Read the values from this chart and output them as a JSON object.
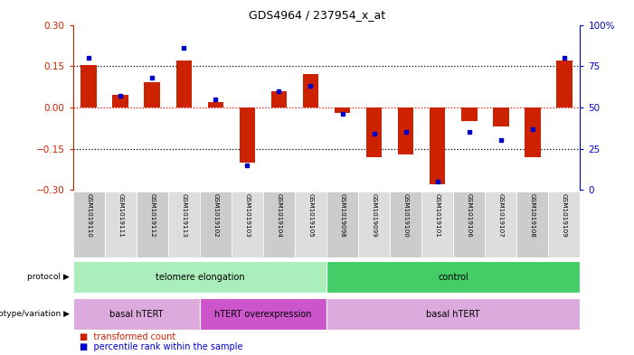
{
  "title": "GDS4964 / 237954_x_at",
  "samples": [
    "GSM1019110",
    "GSM1019111",
    "GSM1019112",
    "GSM1019113",
    "GSM1019102",
    "GSM1019103",
    "GSM1019104",
    "GSM1019105",
    "GSM1019098",
    "GSM1019099",
    "GSM1019100",
    "GSM1019101",
    "GSM1019106",
    "GSM1019107",
    "GSM1019108",
    "GSM1019109"
  ],
  "transformed_count": [
    0.155,
    0.045,
    0.09,
    0.17,
    0.02,
    -0.2,
    0.06,
    0.12,
    -0.02,
    -0.18,
    -0.17,
    -0.28,
    -0.05,
    -0.07,
    -0.18,
    0.17
  ],
  "percentile_rank": [
    80,
    57,
    68,
    86,
    55,
    15,
    60,
    63,
    46,
    34,
    35,
    5,
    35,
    30,
    37,
    80
  ],
  "ylim_left": [
    -0.3,
    0.3
  ],
  "ylim_right": [
    0,
    100
  ],
  "yticks_left": [
    -0.3,
    -0.15,
    0.0,
    0.15,
    0.3
  ],
  "yticks_right": [
    0,
    25,
    50,
    75,
    100
  ],
  "hline_dotted_black": [
    0.15,
    -0.15
  ],
  "hline_dotted_red": [
    0.0
  ],
  "bar_color": "#cc2200",
  "dot_color": "#0000cc",
  "protocol_groups": [
    {
      "label": "telomere elongation",
      "start": 0,
      "end": 7,
      "color": "#aaeebb"
    },
    {
      "label": "control",
      "start": 8,
      "end": 15,
      "color": "#44cc66"
    }
  ],
  "genotype_groups": [
    {
      "label": "basal hTERT",
      "start": 0,
      "end": 3,
      "color": "#ddaadd"
    },
    {
      "label": "hTERT overexpression",
      "start": 4,
      "end": 7,
      "color": "#cc55cc"
    },
    {
      "label": "basal hTERT",
      "start": 8,
      "end": 15,
      "color": "#ddaadd"
    }
  ],
  "sample_bg_colors": [
    "#cccccc",
    "#dddddd"
  ],
  "left_axis_color": "#cc2200",
  "right_axis_color": "#0000cc",
  "bg_color": "#ffffff"
}
